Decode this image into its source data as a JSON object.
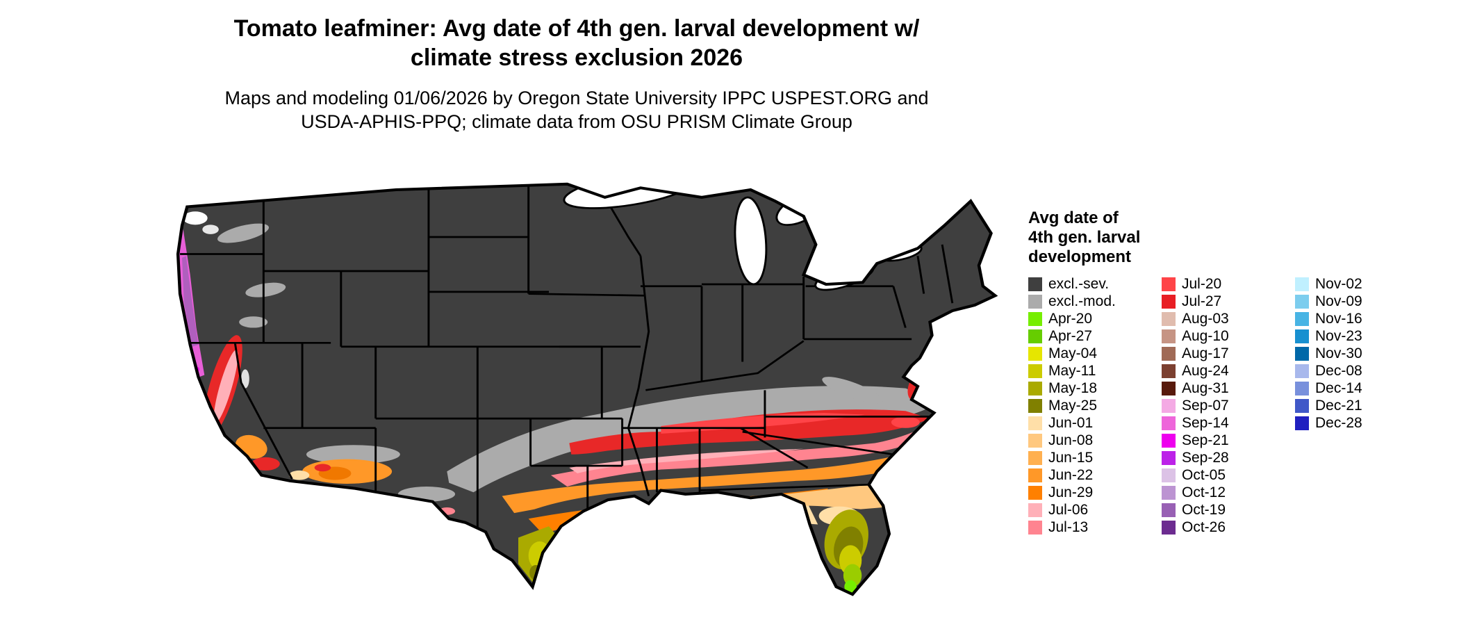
{
  "title": {
    "line1": "Tomato leafminer: Avg date of 4th gen. larval development w/",
    "line2": "climate stress exclusion 2026"
  },
  "subtitle": {
    "line1": "Maps and modeling 01/06/2026 by Oregon State University IPPC USPEST.ORG and",
    "line2": "USDA-APHIS-PPQ; climate data from OSU PRISM Climate Group"
  },
  "map": {
    "region": "Continental United States",
    "land_excluded_color": "#3F3F3F",
    "border_color": "#000000",
    "water_color": "#FFFFFF"
  },
  "legend": {
    "title_lines": [
      "Avg date of",
      "4th gen. larval",
      "development"
    ],
    "columns": [
      [
        {
          "label": "excl.-sev.",
          "color": "#3F3F3F"
        },
        {
          "label": "excl.-mod.",
          "color": "#ABABAB"
        },
        {
          "label": "Apr-20",
          "color": "#76EE00"
        },
        {
          "label": "Apr-27",
          "color": "#66CD00"
        },
        {
          "label": "May-04",
          "color": "#E6E600"
        },
        {
          "label": "May-11",
          "color": "#CCCC00"
        },
        {
          "label": "May-18",
          "color": "#AAAA00"
        },
        {
          "label": "May-25",
          "color": "#808000"
        },
        {
          "label": "Jun-01",
          "color": "#FFDFA8"
        },
        {
          "label": "Jun-08",
          "color": "#FFC87F"
        },
        {
          "label": "Jun-15",
          "color": "#FFB050"
        },
        {
          "label": "Jun-22",
          "color": "#FF9828"
        },
        {
          "label": "Jun-29",
          "color": "#FF8000"
        },
        {
          "label": "Jul-06",
          "color": "#FFB0B8"
        },
        {
          "label": "Jul-13",
          "color": "#FF8490"
        }
      ],
      [
        {
          "label": "Jul-20",
          "color": "#FF4448"
        },
        {
          "label": "Jul-27",
          "color": "#E81E24"
        },
        {
          "label": "Aug-03",
          "color": "#E0BCAE"
        },
        {
          "label": "Aug-10",
          "color": "#C69484"
        },
        {
          "label": "Aug-17",
          "color": "#A06A56"
        },
        {
          "label": "Aug-24",
          "color": "#7C4030"
        },
        {
          "label": "Aug-31",
          "color": "#581A0C"
        },
        {
          "label": "Sep-07",
          "color": "#F4AAE4"
        },
        {
          "label": "Sep-14",
          "color": "#EE66DA"
        },
        {
          "label": "Sep-21",
          "color": "#EE00EE"
        },
        {
          "label": "Sep-28",
          "color": "#BC22E8"
        },
        {
          "label": "Oct-05",
          "color": "#DCC2E6"
        },
        {
          "label": "Oct-12",
          "color": "#BC94D2"
        },
        {
          "label": "Oct-19",
          "color": "#9860B4"
        },
        {
          "label": "Oct-26",
          "color": "#6C2C90"
        }
      ],
      [
        {
          "label": "Nov-02",
          "color": "#C0F0FF"
        },
        {
          "label": "Nov-09",
          "color": "#7CCDEE"
        },
        {
          "label": "Nov-16",
          "color": "#48B4E4"
        },
        {
          "label": "Nov-23",
          "color": "#1890D0"
        },
        {
          "label": "Nov-30",
          "color": "#0068A8"
        },
        {
          "label": "Dec-08",
          "color": "#A8B8EC"
        },
        {
          "label": "Dec-14",
          "color": "#7890DC"
        },
        {
          "label": "Dec-21",
          "color": "#4058C8"
        },
        {
          "label": "Dec-28",
          "color": "#2020C0"
        }
      ]
    ]
  }
}
